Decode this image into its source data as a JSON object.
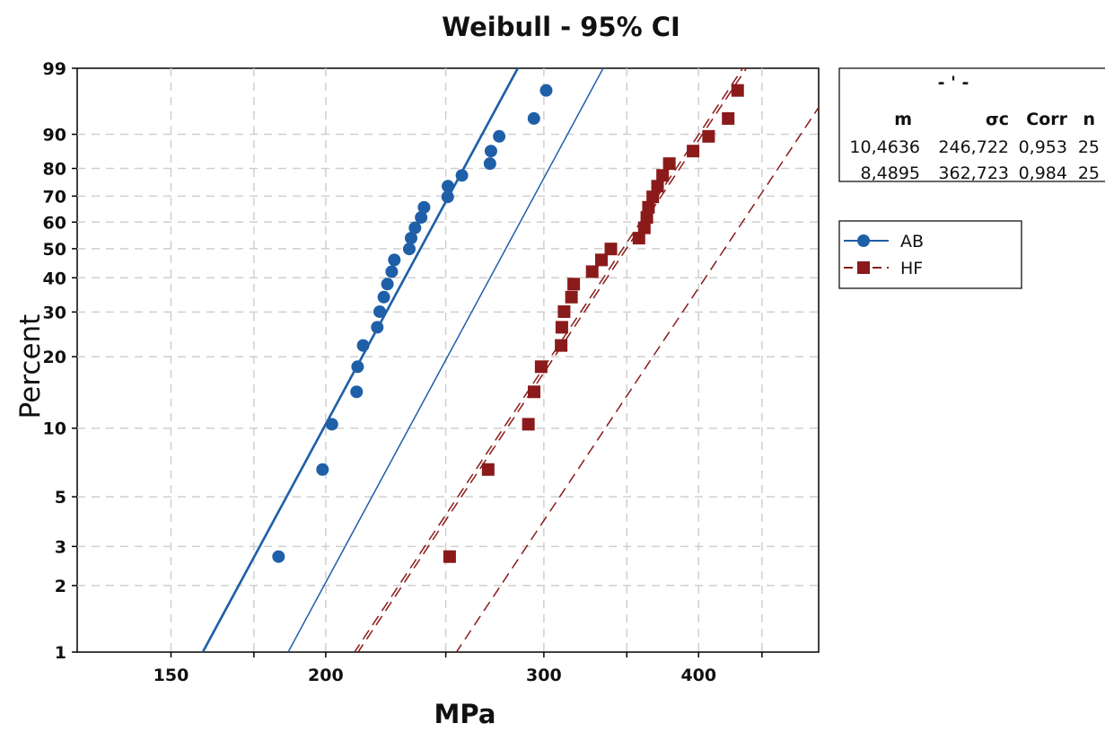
{
  "chart_data": {
    "type": "scatter",
    "title": "Weibull - 95% CI",
    "xlabel": "MPa",
    "ylabel": "Percent",
    "x_scale": "log",
    "y_scale": "weibull",
    "xlim": [
      126,
      500
    ],
    "ylim": [
      1,
      99
    ],
    "x_ticks": [
      150,
      200,
      300,
      400
    ],
    "x_tick_labels": [
      "150",
      "200",
      "300",
      "400"
    ],
    "x_minor_grid": [
      175,
      250,
      350,
      450
    ],
    "y_ticks": [
      1,
      2,
      3,
      5,
      10,
      20,
      30,
      40,
      50,
      60,
      70,
      80,
      90,
      99
    ],
    "y_tick_labels": [
      "1",
      "2",
      "3",
      "5",
      "10",
      "20",
      "30",
      "40",
      "50",
      "60",
      "70",
      "80",
      "90",
      "99"
    ],
    "grid": true,
    "legend_position": "right",
    "table": {
      "title": "- ' -",
      "headers": [
        "m",
        "σc",
        "Corr",
        "n"
      ],
      "rows": [
        [
          "10,4636",
          "246,722",
          "0,953",
          "25"
        ],
        [
          "8,4895",
          "362,723",
          "0,984",
          "25"
        ]
      ]
    },
    "series": [
      {
        "name": "AB",
        "color": "#1f5fa8",
        "marker": "circle",
        "line_style": "solid",
        "shape": 10.4636,
        "scale": 246.722,
        "ci_lower_at_1pct": 159.3,
        "ci_upper_at_1pct": 186.5,
        "points": [
          [
            183.2,
            2.7
          ],
          [
            198.8,
            6.6
          ],
          [
            202.3,
            10.4
          ],
          [
            211.8,
            14.3
          ],
          [
            212.2,
            18.2
          ],
          [
            214.4,
            22.2
          ],
          [
            220.1,
            26.2
          ],
          [
            221.1,
            30.1
          ],
          [
            222.8,
            34.1
          ],
          [
            224.3,
            38.0
          ],
          [
            226.1,
            42.0
          ],
          [
            227.2,
            46.0
          ],
          [
            233.6,
            49.9
          ],
          [
            234.4,
            53.9
          ],
          [
            236.1,
            57.8
          ],
          [
            238.8,
            61.8
          ],
          [
            240.1,
            65.7
          ],
          [
            250.9,
            69.7
          ],
          [
            251.0,
            73.7
          ],
          [
            257.6,
            77.6
          ],
          [
            271.4,
            81.6
          ],
          [
            271.9,
            85.5
          ],
          [
            276.1,
            89.5
          ],
          [
            294.5,
            93.4
          ],
          [
            301.3,
            97.4
          ]
        ]
      },
      {
        "name": "HF",
        "color": "#8b1a1a",
        "marker": "square",
        "line_style": "dashed",
        "shape": 8.4895,
        "scale": 362.723,
        "ci_lower_at_1pct": 212.4,
        "ci_upper_at_1pct": 255.0,
        "points": [
          [
            251.8,
            2.7
          ],
          [
            270.5,
            6.6
          ],
          [
            291.5,
            10.4
          ],
          [
            294.6,
            14.3
          ],
          [
            298.5,
            18.2
          ],
          [
            309.8,
            22.2
          ],
          [
            310.2,
            26.2
          ],
          [
            311.5,
            30.1
          ],
          [
            315.8,
            34.1
          ],
          [
            317.1,
            38.0
          ],
          [
            328.2,
            42.0
          ],
          [
            333.9,
            46.0
          ],
          [
            339.8,
            49.9
          ],
          [
            358.0,
            53.9
          ],
          [
            361.6,
            57.8
          ],
          [
            363.3,
            61.8
          ],
          [
            364.4,
            65.7
          ],
          [
            367.3,
            69.7
          ],
          [
            370.6,
            73.7
          ],
          [
            374.1,
            77.6
          ],
          [
            378.8,
            81.6
          ],
          [
            395.9,
            85.5
          ],
          [
            407.5,
            89.5
          ],
          [
            422.6,
            93.4
          ],
          [
            430.1,
            97.4
          ]
        ]
      }
    ]
  }
}
